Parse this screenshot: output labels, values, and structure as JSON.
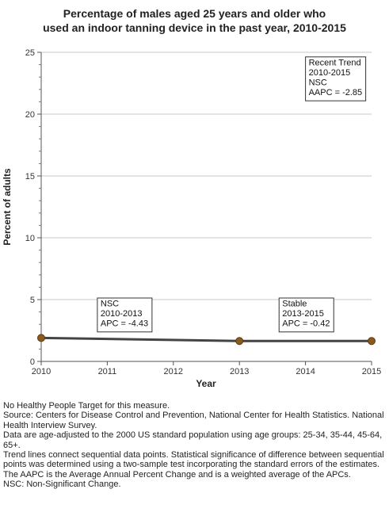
{
  "chart_data": {
    "type": "line",
    "title": [
      "Percentage of males aged 25 years and older who",
      "used an indoor tanning device in the past year, 2010-2015"
    ],
    "xlabel": "Year",
    "ylabel": "Percent of adults",
    "xlim": [
      2010,
      2015
    ],
    "ylim": [
      0,
      25
    ],
    "x_ticks": [
      2010,
      2011,
      2012,
      2013,
      2014,
      2015
    ],
    "y_ticks": [
      0,
      5,
      10,
      15,
      20,
      25
    ],
    "grid": true,
    "series": [
      {
        "points": [
          {
            "x": 2010,
            "y": 1.9
          },
          {
            "x": 2013,
            "y": 1.65
          },
          {
            "x": 2015,
            "y": 1.65
          }
        ],
        "line_color": "#444444",
        "marker_color": "#8B5A1E"
      }
    ],
    "annotations": [
      {
        "lines": [
          "NSC",
          "2010-2013",
          "APC = -4.43"
        ],
        "anchor_x": 2010.85,
        "anchor_y": 5
      },
      {
        "lines": [
          "Stable",
          "2013-2015",
          "APC = -0.42"
        ],
        "anchor_x": 2013.6,
        "anchor_y": 5
      },
      {
        "lines": [
          "Recent Trend",
          "2010-2015",
          "NSC",
          "AAPC = -2.85"
        ],
        "anchor_x": 2014.0,
        "anchor_y": 24.5
      }
    ]
  },
  "notes": [
    "No Healthy People Target for this measure.",
    "Source: Centers for Disease Control and Prevention, National Center for Health Statistics. National Health Interview Survey.",
    "Data are age-adjusted to the 2000 US standard population using age groups: 25-34, 35-44, 45-64, 65+.",
    "Trend lines connect sequential data points. Statistical significance of difference between sequential points was determined using a two-sample test incorporating the standard errors of the estimates.",
    "The AAPC is the Average Annual Percent Change and is a weighted average of the APCs.",
    "NSC: Non-Significant Change."
  ]
}
